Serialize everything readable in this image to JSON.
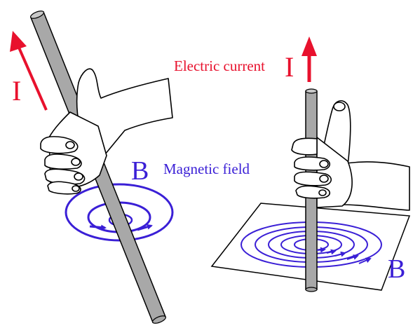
{
  "left_panel": {
    "current_symbol": "I",
    "field_symbol": "B",
    "field_label": "Magnetic field"
  },
  "right_panel": {
    "current_label": "Electric current",
    "current_symbol": "I",
    "field_symbol": "B"
  },
  "colors": {
    "current": "#e8112d",
    "field": "#3a1fd6",
    "rod_fill": "#a8a8a8",
    "outline": "#000000"
  }
}
